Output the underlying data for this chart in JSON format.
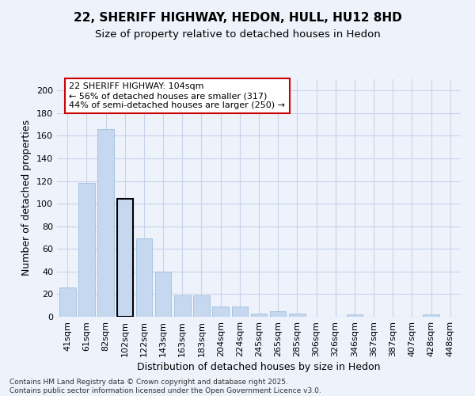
{
  "title": "22, SHERIFF HIGHWAY, HEDON, HULL, HU12 8HD",
  "subtitle": "Size of property relative to detached houses in Hedon",
  "xlabel": "Distribution of detached houses by size in Hedon",
  "ylabel": "Number of detached properties",
  "categories": [
    "41sqm",
    "61sqm",
    "82sqm",
    "102sqm",
    "122sqm",
    "143sqm",
    "163sqm",
    "183sqm",
    "204sqm",
    "224sqm",
    "245sqm",
    "265sqm",
    "285sqm",
    "306sqm",
    "326sqm",
    "346sqm",
    "367sqm",
    "387sqm",
    "407sqm",
    "428sqm",
    "448sqm"
  ],
  "values": [
    26,
    118,
    166,
    104,
    69,
    40,
    19,
    19,
    9,
    9,
    3,
    5,
    3,
    0,
    0,
    2,
    0,
    0,
    0,
    2,
    0
  ],
  "highlight_index": 3,
  "bar_color": "#c5d8f0",
  "bar_edge_color": "#94b8d8",
  "highlight_bar_edge_color": "#000000",
  "annotation_text": "22 SHERIFF HIGHWAY: 104sqm\n← 56% of detached houses are smaller (317)\n44% of semi-detached houses are larger (250) →",
  "annotation_box_color": "#ffffff",
  "annotation_box_edge_color": "#cc0000",
  "ylim": [
    0,
    210
  ],
  "yticks": [
    0,
    20,
    40,
    60,
    80,
    100,
    120,
    140,
    160,
    180,
    200
  ],
  "background_color": "#edf2fb",
  "grid_color": "#c8d4ea",
  "footnote": "Contains HM Land Registry data © Crown copyright and database right 2025.\nContains public sector information licensed under the Open Government Licence v3.0.",
  "title_fontsize": 11,
  "subtitle_fontsize": 9.5,
  "xlabel_fontsize": 9,
  "ylabel_fontsize": 9,
  "tick_fontsize": 8,
  "annotation_fontsize": 8,
  "footnote_fontsize": 6.5
}
